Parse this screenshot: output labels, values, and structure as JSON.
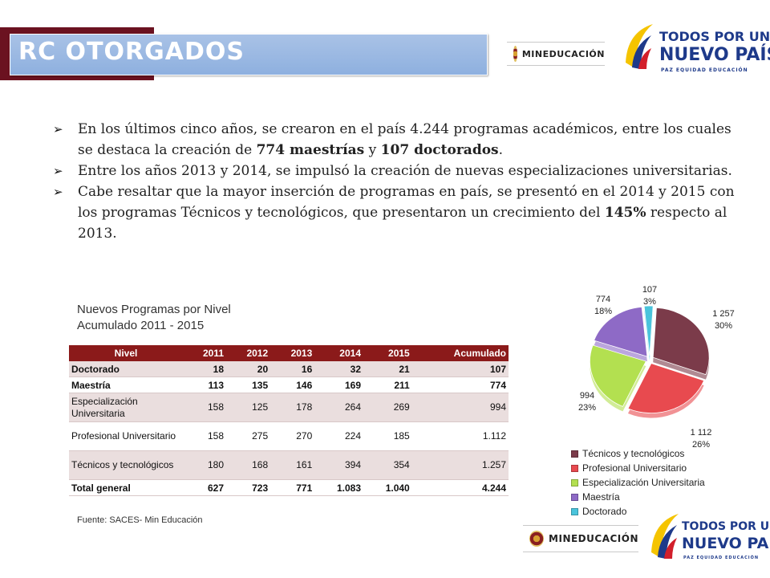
{
  "title": "RC OTORGADOS",
  "logos": {
    "mineducacion": "MINEDUCACIÓN",
    "todos_line1": "TODOS POR UN",
    "todos_line2": "NUEVO PAÍS",
    "todos_line3": "PAZ  EQUIDAD  EDUCACIÓN"
  },
  "bullets": [
    {
      "parts": [
        {
          "t": "En los últimos cinco años, se crearon en el país 4.244 programas académicos, entre los cuales se destaca la creación de ",
          "b": false
        },
        {
          "t": "774 maestrías",
          "b": true
        },
        {
          "t": " y ",
          "b": false
        },
        {
          "t": "107 doctorados",
          "b": true
        },
        {
          "t": ".",
          "b": false
        }
      ]
    },
    {
      "parts": [
        {
          "t": "Entre los años 2013 y 2014,  se impulsó la creación de nuevas especializaciones universitarias.",
          "b": false
        }
      ]
    },
    {
      "parts": [
        {
          "t": "Cabe resaltar que la mayor inserción de programas en país, se presentó en el 2014 y 2015 con los programas Técnicos y tecnológicos, que presentaron un crecimiento del ",
          "b": false
        },
        {
          "t": "145%",
          "b": true
        },
        {
          "t": " respecto al 2013.",
          "b": false
        }
      ]
    }
  ],
  "table_caption": {
    "line1": "Nuevos Programas  por Nivel",
    "line2": "Acumulado 2011 - 2015"
  },
  "table": {
    "headers": [
      "Nivel",
      "2011",
      "2012",
      "2013",
      "2014",
      "2015",
      "Acumulado"
    ],
    "rows": [
      {
        "cells": [
          "Doctorado",
          "18",
          "20",
          "16",
          "32",
          "21",
          "107"
        ],
        "bold": true
      },
      {
        "cells": [
          "Maestría",
          "113",
          "135",
          "146",
          "169",
          "211",
          "774"
        ],
        "bold": true
      },
      {
        "cells": [
          "Especialización Universitaria",
          "158",
          "125",
          "178",
          "264",
          "269",
          "994"
        ],
        "bold": false
      },
      {
        "cells": [
          "Profesional Universitario",
          "158",
          "275",
          "270",
          "224",
          "185",
          "1.112"
        ],
        "bold": false
      },
      {
        "cells": [
          "Técnicos y tecnológicos",
          "180",
          "168",
          "161",
          "394",
          "354",
          "1.257"
        ],
        "bold": false
      },
      {
        "cells": [
          "Total general",
          "627",
          "723",
          "771",
          "1.083",
          "1.040",
          "4.244"
        ],
        "bold": true
      }
    ]
  },
  "source": "Fuente: SACES- Min Educación",
  "chart_data": {
    "type": "pie",
    "series": [
      {
        "label": "Técnicos y tecnológicos",
        "value": 1257,
        "value_text": "1 257",
        "percent_text": "30%",
        "color": "#7b3b4a"
      },
      {
        "label": "Profesional Universitario",
        "value": 1112,
        "value_text": "1 112",
        "percent_text": "26%",
        "color": "#e84a4f"
      },
      {
        "label": "Especialización Universitaria",
        "value": 994,
        "value_text": "994",
        "percent_text": "23%",
        "color": "#b3e050"
      },
      {
        "label": "Maestría",
        "value": 774,
        "value_text": "774",
        "percent_text": "18%",
        "color": "#8e6ac6"
      },
      {
        "label": "Doctorado",
        "value": 107,
        "value_text": "107",
        "percent_text": "3%",
        "color": "#4ac4dc"
      }
    ],
    "legend_position": "bottom",
    "exploded": true
  }
}
